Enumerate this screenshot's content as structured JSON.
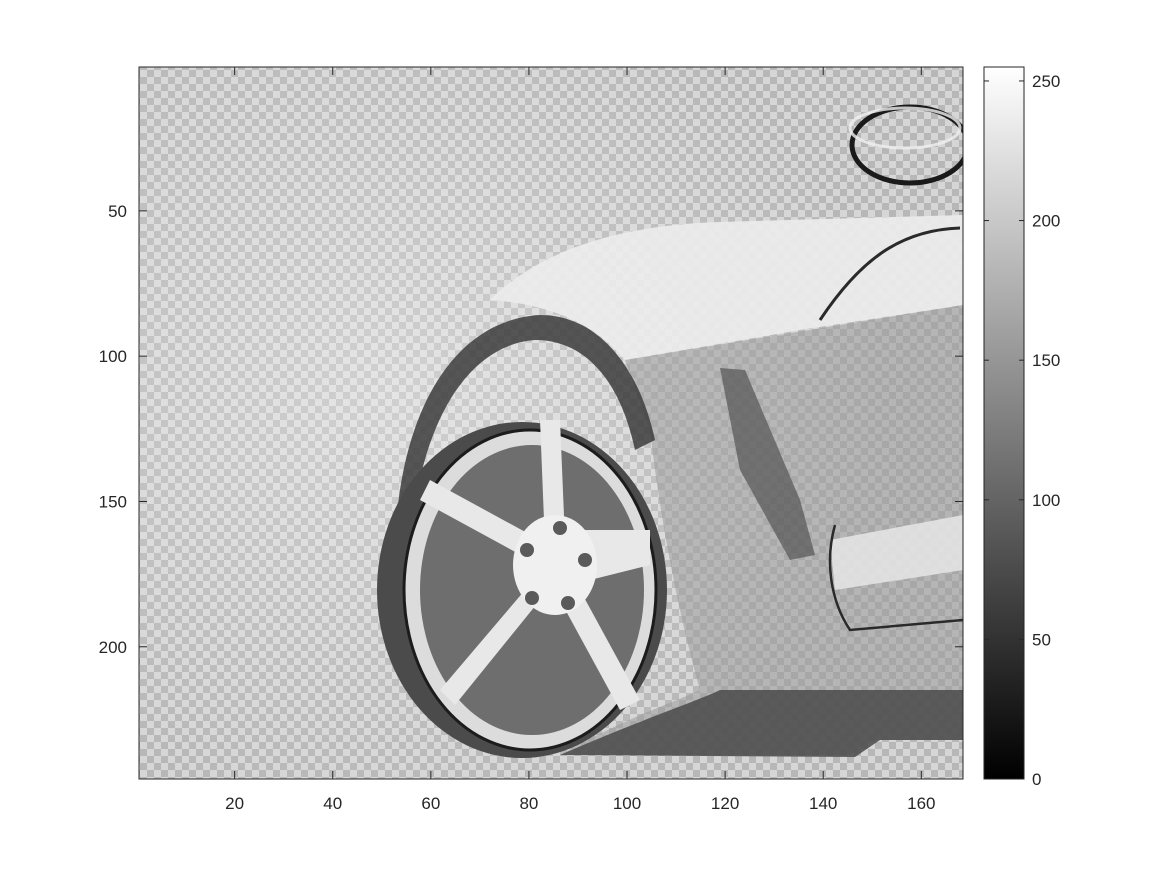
{
  "chart_data": {
    "type": "heatmap",
    "colormap": "gray",
    "title": "",
    "xlabel": "",
    "ylabel": "",
    "image_size": {
      "columns": 168,
      "rows": 245
    },
    "xlim": [
      0.5,
      168.5
    ],
    "ylim": [
      0.5,
      245.5
    ],
    "y_direction": "reverse",
    "x_ticks": [
      20,
      40,
      60,
      80,
      100,
      120,
      140,
      160
    ],
    "y_ticks": [
      50,
      100,
      150,
      200
    ],
    "colorbar": {
      "range": [
        0,
        255
      ],
      "ticks": [
        0,
        50,
        100,
        150,
        200,
        250
      ],
      "placement": "right"
    },
    "content": "grayscale photo of a sports car front wheel with five-spoke rim, overlaid with a checkerboard pattern"
  },
  "colors": {
    "axis": "#262626",
    "background": "#ffffff"
  }
}
